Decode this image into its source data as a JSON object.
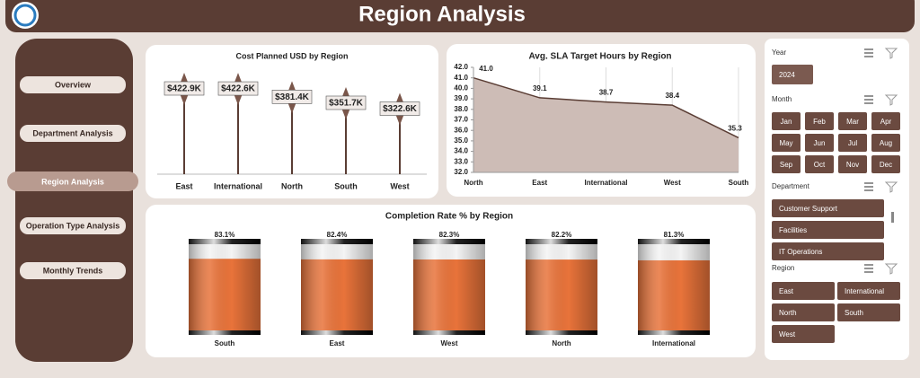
{
  "header": {
    "title": "Region Analysis"
  },
  "nav": {
    "items": [
      "Overview",
      "Department Analysis",
      "Region Analysis",
      "Operation Type Analysis",
      "Monthly Trends"
    ],
    "active": 2
  },
  "chart_data": [
    {
      "type": "lollipop",
      "title": "Cost Planned USD by Region",
      "categories": [
        "East",
        "International",
        "North",
        "South",
        "West"
      ],
      "values": [
        422900,
        422600,
        381400,
        351700,
        322600
      ],
      "value_labels": [
        "$422.9K",
        "$422.6K",
        "$381.4K",
        "$351.7K",
        "$322.6K"
      ],
      "color": "#5a3d34"
    },
    {
      "type": "area",
      "title": "Avg. SLA Target Hours by Region",
      "categories": [
        "North",
        "East",
        "International",
        "West",
        "South"
      ],
      "values": [
        41.0,
        39.1,
        38.7,
        38.4,
        35.3
      ],
      "value_labels": [
        "41.0",
        "39.1",
        "38.7",
        "38.4",
        "35.3"
      ],
      "ylim": [
        32,
        42
      ],
      "yticks": [
        {
          "value": 32,
          "label": "32.0"
        },
        {
          "value": 33,
          "label": "33.0"
        },
        {
          "value": 34,
          "label": "34.0"
        },
        {
          "value": 35,
          "label": "35.0"
        },
        {
          "value": 36,
          "label": "36.0"
        },
        {
          "value": 37,
          "label": "37.0"
        },
        {
          "value": 38,
          "label": "38.0"
        },
        {
          "value": 39,
          "label": "39.0"
        },
        {
          "value": 40,
          "label": "40.0"
        },
        {
          "value": 41,
          "label": "41.0"
        },
        {
          "value": 42,
          "label": "42.0"
        }
      ],
      "color": "#5a3d34",
      "fill": "#cdbcb6",
      "grid": true
    },
    {
      "type": "cylinder",
      "title": "Completion Rate % by Region",
      "categories": [
        "South",
        "East",
        "West",
        "North",
        "International"
      ],
      "values": [
        83.1,
        82.4,
        82.3,
        82.2,
        81.3
      ],
      "value_labels": [
        "83.1%",
        "82.4%",
        "82.3%",
        "82.2%",
        "81.3%"
      ],
      "ylim": [
        0,
        100
      ],
      "color": "#e8733a"
    }
  ],
  "slicers": [
    {
      "title": "Year",
      "items": [
        "2024"
      ]
    },
    {
      "title": "Month",
      "items": [
        "Jan",
        "Feb",
        "Mar",
        "Apr",
        "May",
        "Jun",
        "Jul",
        "Aug",
        "Sep",
        "Oct",
        "Nov",
        "Dec"
      ]
    },
    {
      "title": "Department",
      "items": [
        "Customer Support",
        "Facilities",
        "IT Operations"
      ]
    },
    {
      "title": "Region",
      "items": [
        "East",
        "International",
        "North",
        "South",
        "West"
      ]
    }
  ]
}
